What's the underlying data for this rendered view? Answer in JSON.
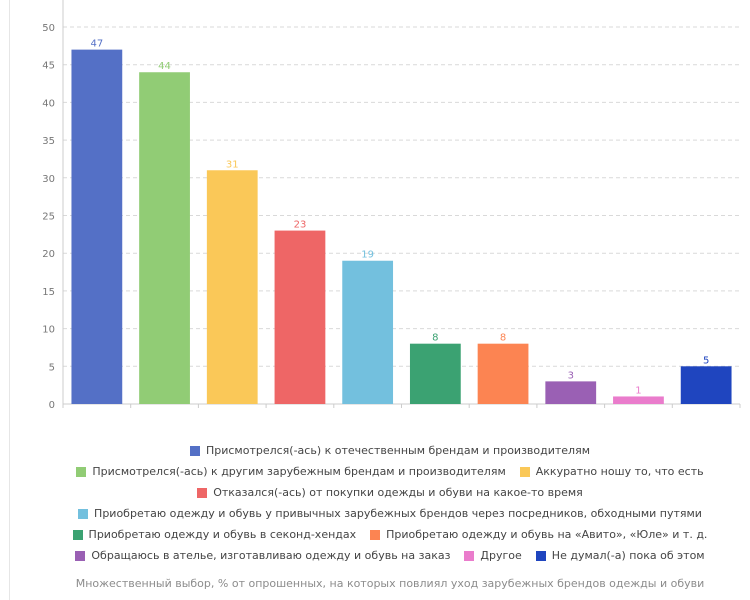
{
  "chart_data": {
    "type": "bar",
    "title": "",
    "xlabel": "",
    "ylabel": "",
    "ylim": [
      0,
      50
    ],
    "yticks": [
      0,
      5,
      10,
      15,
      20,
      25,
      30,
      35,
      40,
      45,
      50
    ],
    "grid": true,
    "legend_position": "bottom",
    "series": [
      {
        "name": "Присмотрелся(-ась) к отечественным брендам и производителям",
        "value": 47,
        "color": "#5470c6"
      },
      {
        "name": "Присмотрелся(-ась) к другим зарубежным брендам и производителям",
        "value": 44,
        "color": "#91cc75"
      },
      {
        "name": "Аккуратно ношу то, что есть",
        "value": 31,
        "color": "#fac858"
      },
      {
        "name": "Отказался(-ась) от покупки одежды и обуви на какое-то время",
        "value": 23,
        "color": "#ee6666"
      },
      {
        "name": "Приобретаю одежду и обувь у привычных зарубежных брендов через посредников, обходными путями",
        "value": 19,
        "color": "#73c0de"
      },
      {
        "name": "Приобретаю одежду и обувь в секонд-хендах",
        "value": 8,
        "color": "#3ba272"
      },
      {
        "name": "Приобретаю одежду и обувь на «Авито», «Юле» и т. д.",
        "value": 8,
        "color": "#fc8452"
      },
      {
        "name": "Обращаюсь в ателье, изготавливаю одежду и обувь на заказ",
        "value": 3,
        "color": "#9a60b4"
      },
      {
        "name": "Другое",
        "value": 1,
        "color": "#ea7ccc"
      },
      {
        "name": "Не думал(-а) пока об этом",
        "value": 5,
        "color": "#1f45bf"
      }
    ]
  },
  "footnote": "Множественный выбор, % от опрошенных, на которых повлиял уход зарубежных брендов одежды и обуви"
}
